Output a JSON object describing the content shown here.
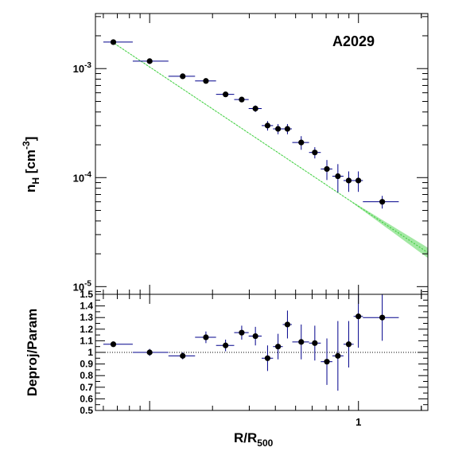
{
  "chart_data": [
    {
      "type": "scatter",
      "panel": "top",
      "label": "A2029",
      "xscale": "log",
      "yscale": "log",
      "xlim": [
        0.055,
        2.15
      ],
      "ylim": [
        8.5e-06,
        0.0032
      ],
      "ylabel_main": "n",
      "ylabel_sub": "H",
      "ylabel_unit_pre": " [cm",
      "ylabel_unit_sup": "-3",
      "ylabel_unit_post": "]",
      "yticks": [
        {
          "value": 0.001,
          "base": "10",
          "exp": "-3"
        },
        {
          "value": 0.0001,
          "base": "10",
          "exp": "-4"
        },
        {
          "value": 1e-05,
          "base": "10",
          "exp": "-5"
        }
      ],
      "grid": false,
      "points": [
        {
          "x": 0.067,
          "xlo": 0.06,
          "xhi": 0.083,
          "y": 0.00175,
          "yerr": 4e-05
        },
        {
          "x": 0.1,
          "xlo": 0.083,
          "xhi": 0.123,
          "y": 0.00117,
          "yerr": 3e-05
        },
        {
          "x": 0.144,
          "xlo": 0.123,
          "xhi": 0.165,
          "y": 0.00085,
          "yerr": 2e-05
        },
        {
          "x": 0.186,
          "xlo": 0.165,
          "xhi": 0.208,
          "y": 0.00077,
          "yerr": 2e-05
        },
        {
          "x": 0.231,
          "xlo": 0.208,
          "xhi": 0.254,
          "y": 0.00058,
          "yerr": 2e-05
        },
        {
          "x": 0.276,
          "xlo": 0.254,
          "xhi": 0.298,
          "y": 0.00052,
          "yerr": 2e-05
        },
        {
          "x": 0.321,
          "xlo": 0.298,
          "xhi": 0.344,
          "y": 0.00043,
          "yerr": 3e-05
        },
        {
          "x": 0.367,
          "xlo": 0.344,
          "xhi": 0.39,
          "y": 0.0003,
          "yerr": 3e-05
        },
        {
          "x": 0.412,
          "xlo": 0.39,
          "xhi": 0.434,
          "y": 0.00028,
          "yerr": 3e-05
        },
        {
          "x": 0.457,
          "xlo": 0.434,
          "xhi": 0.48,
          "y": 0.00028,
          "yerr": 3e-05
        },
        {
          "x": 0.532,
          "xlo": 0.482,
          "xhi": 0.58,
          "y": 0.00021,
          "yerr": 3e-05
        },
        {
          "x": 0.618,
          "xlo": 0.58,
          "xhi": 0.66,
          "y": 0.00017,
          "yerr": 2e-05
        },
        {
          "x": 0.706,
          "xlo": 0.66,
          "xhi": 0.75,
          "y": 0.00012,
          "yerr": 2.5e-05
        },
        {
          "x": 0.797,
          "xlo": 0.75,
          "xhi": 0.848,
          "y": 0.000103,
          "yerr": 3e-05
        },
        {
          "x": 0.898,
          "xlo": 0.848,
          "xhi": 0.948,
          "y": 9.4e-05,
          "yerr": 2e-05
        },
        {
          "x": 0.999,
          "xlo": 0.948,
          "xhi": 1.05,
          "y": 9.4e-05,
          "yerr": 2e-05
        },
        {
          "x": 1.3,
          "xlo": 1.05,
          "xhi": 1.56,
          "y": 6e-05,
          "yerr": 8e-06
        }
      ],
      "model": {
        "x_start": 0.066,
        "y_start": 0.00176,
        "x_end": 2.15,
        "y_end": 2.05e-05,
        "x_band_start": 0.9,
        "band_frac": 0.1,
        "color": "#33cc33"
      }
    },
    {
      "type": "scatter",
      "panel": "bottom",
      "xscale": "log",
      "yscale": "linear",
      "xlim": [
        0.055,
        2.15
      ],
      "ylim": [
        0.5,
        1.5
      ],
      "ylabel": "Deproj/Param",
      "xlabel_main": "R/R",
      "xlabel_sub": "500",
      "xticks": [
        {
          "value": 1,
          "label": "1"
        }
      ],
      "yticks": [
        {
          "value": 0.5,
          "label": "0.5"
        },
        {
          "value": 0.6,
          "label": "0.6"
        },
        {
          "value": 0.7,
          "label": "0.7"
        },
        {
          "value": 0.8,
          "label": "0.8"
        },
        {
          "value": 0.9,
          "label": "0.9"
        },
        {
          "value": 1.0,
          "label": "1"
        },
        {
          "value": 1.1,
          "label": "1.1"
        },
        {
          "value": 1.2,
          "label": "1.2"
        },
        {
          "value": 1.3,
          "label": "1.3"
        },
        {
          "value": 1.4,
          "label": "1.4"
        },
        {
          "value": 1.5,
          "label": "1.5"
        }
      ],
      "reference_line": 1.0,
      "grid": false,
      "points": [
        {
          "x": 0.067,
          "xlo": 0.06,
          "xhi": 0.083,
          "y": 1.07,
          "yerr": 0.01
        },
        {
          "x": 0.1,
          "xlo": 0.083,
          "xhi": 0.123,
          "y": 1.0,
          "yerr": 0.03
        },
        {
          "x": 0.144,
          "xlo": 0.123,
          "xhi": 0.165,
          "y": 0.97,
          "yerr": 0.03
        },
        {
          "x": 0.186,
          "xlo": 0.165,
          "xhi": 0.208,
          "y": 1.13,
          "yerr": 0.05
        },
        {
          "x": 0.231,
          "xlo": 0.208,
          "xhi": 0.254,
          "y": 1.06,
          "yerr": 0.05
        },
        {
          "x": 0.276,
          "xlo": 0.254,
          "xhi": 0.298,
          "y": 1.17,
          "yerr": 0.06
        },
        {
          "x": 0.321,
          "xlo": 0.298,
          "xhi": 0.344,
          "y": 1.14,
          "yerr": 0.08
        },
        {
          "x": 0.367,
          "xlo": 0.344,
          "xhi": 0.39,
          "y": 0.95,
          "yerr": 0.11
        },
        {
          "x": 0.412,
          "xlo": 0.39,
          "xhi": 0.434,
          "y": 1.05,
          "yerr": 0.11
        },
        {
          "x": 0.457,
          "xlo": 0.434,
          "xhi": 0.48,
          "y": 1.24,
          "yerr": 0.12
        },
        {
          "x": 0.532,
          "xlo": 0.482,
          "xhi": 0.58,
          "y": 1.09,
          "yerr": 0.15
        },
        {
          "x": 0.618,
          "xlo": 0.58,
          "xhi": 0.66,
          "y": 1.08,
          "yerr": 0.15
        },
        {
          "x": 0.706,
          "xlo": 0.66,
          "xhi": 0.75,
          "y": 0.92,
          "yerr": 0.2
        },
        {
          "x": 0.797,
          "xlo": 0.75,
          "xhi": 0.848,
          "y": 0.97,
          "yerr": 0.3
        },
        {
          "x": 0.898,
          "xlo": 0.848,
          "xhi": 0.948,
          "y": 1.07,
          "yerr": 0.2
        },
        {
          "x": 0.999,
          "xlo": 0.948,
          "xhi": 1.05,
          "y": 1.31,
          "yerr": 0.27
        },
        {
          "x": 1.3,
          "xlo": 1.05,
          "xhi": 1.56,
          "y": 1.3,
          "yerr": 0.2
        }
      ]
    }
  ],
  "colors": {
    "marker": "#000000",
    "errorbar": "#00008b",
    "model": "#33cc33",
    "frame": "#000000"
  }
}
